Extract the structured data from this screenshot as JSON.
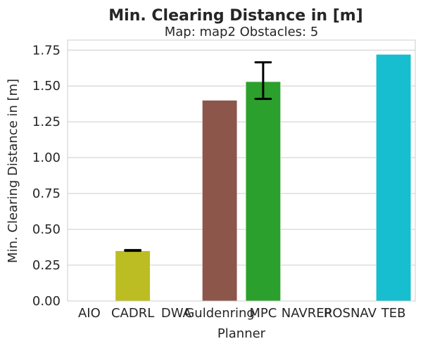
{
  "chart_data": {
    "type": "bar",
    "title": "Min. Clearing Distance in [m]",
    "subtitle": "Map: map2 Obstacles: 5",
    "xlabel": "Planner",
    "ylabel": "Min. Clearing Distance in [m]",
    "ylim": [
      0,
      1.82
    ],
    "yticks": [
      "0.00",
      "0.25",
      "0.50",
      "0.75",
      "1.00",
      "1.25",
      "1.50",
      "1.75"
    ],
    "grid": "horizontal",
    "categories": [
      "AIO",
      "CADRL",
      "DWA",
      "Guldenring",
      "MPC",
      "NAVREP",
      "ROSNAV",
      "TEB"
    ],
    "values": [
      null,
      0.35,
      null,
      1.4,
      1.53,
      null,
      null,
      1.72
    ],
    "error_low": [
      null,
      0.35,
      null,
      null,
      1.41,
      null,
      null,
      null
    ],
    "error_high": [
      null,
      0.355,
      null,
      null,
      1.665,
      null,
      null,
      null
    ],
    "colors": [
      "#1f77b4",
      "#bcbd22",
      "#ff7f0e",
      "#8c564b",
      "#2ca02c",
      "#d62728",
      "#9467bd",
      "#17becf"
    ]
  }
}
